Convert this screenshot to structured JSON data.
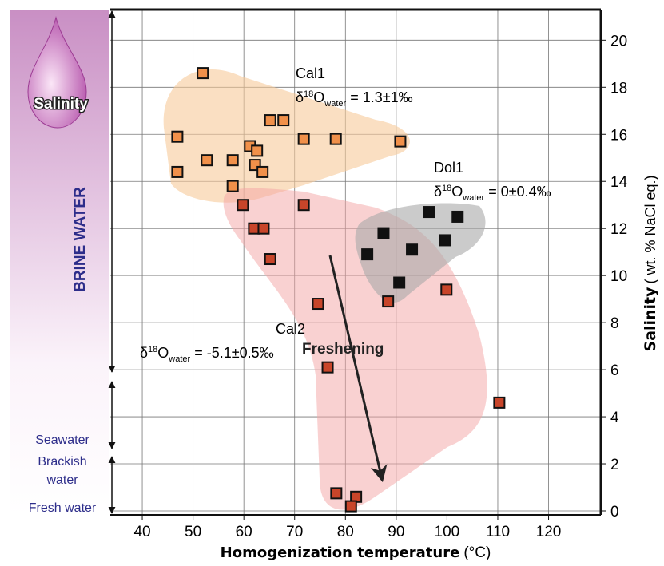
{
  "chart_data": {
    "type": "scatter",
    "xlabel": {
      "main": "Homogenization temperature",
      "unit": "(°C)"
    },
    "ylabel": {
      "main": "Salinity",
      "unit": "( wt. % NaCl eq.)"
    },
    "xlim": [
      33.7,
      130.3
    ],
    "ylim": [
      -0.17,
      21.3
    ],
    "xticks": [
      40,
      50,
      60,
      70,
      80,
      90,
      100,
      110,
      120
    ],
    "yticks": [
      0,
      2,
      4,
      6,
      8,
      10,
      12,
      14,
      16,
      18,
      20
    ],
    "grid": true,
    "series": [
      {
        "name": "Cal1",
        "color": "#f0904a",
        "note": {
          "prefix": "δ",
          "sup": "18",
          "main": "O",
          "sub": "water",
          "rest": " = 1.3±1‰"
        },
        "x": [
          51.9,
          46.9,
          46.9,
          52.7,
          57.8,
          57.8,
          61.2,
          62.6,
          62.2,
          63.7,
          65.2,
          67.8,
          71.8,
          78.1,
          90.8
        ],
        "values": [
          18.6,
          15.9,
          14.4,
          14.9,
          14.9,
          13.8,
          15.5,
          15.3,
          14.7,
          14.4,
          16.6,
          16.6,
          15.8,
          15.8,
          15.7
        ]
      },
      {
        "name": "Cal2",
        "color": "#c8452a",
        "note": {
          "prefix": "δ",
          "sup": "18",
          "main": "O",
          "sub": "water",
          "rest": " = -5.1±0.5‰"
        },
        "x": [
          59.8,
          71.8,
          62.0,
          63.9,
          65.2,
          74.6,
          88.4,
          99.9,
          76.5,
          110.3,
          78.2,
          82.1,
          81.1
        ],
        "values": [
          13.0,
          13.0,
          12.0,
          12.0,
          10.7,
          8.8,
          8.9,
          9.4,
          6.1,
          4.6,
          0.75,
          0.6,
          0.2
        ]
      },
      {
        "name": "Dol1",
        "color": "#111111",
        "note": {
          "prefix": "δ",
          "sup": "18",
          "main": "O",
          "sub": "water",
          "rest": " = 0±0.4‰"
        },
        "x": [
          96.4,
          102.1,
          87.5,
          99.6,
          93.1,
          84.3,
          90.6
        ],
        "values": [
          12.7,
          12.5,
          11.8,
          11.5,
          11.1,
          10.9,
          9.7
        ]
      }
    ],
    "annotation": "Freshening",
    "salinity_scale": {
      "icon_label": "Salinity",
      "title": "BRINE WATER",
      "levels": [
        {
          "lines": [
            "Seawater"
          ]
        },
        {
          "lines": [
            "Brackish",
            "water"
          ]
        },
        {
          "lines": [
            "Fresh water"
          ]
        }
      ]
    }
  }
}
